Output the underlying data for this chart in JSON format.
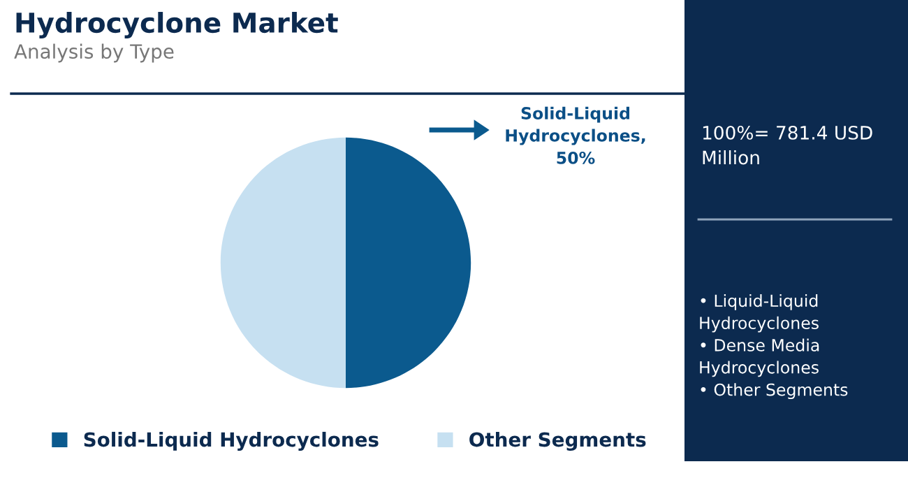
{
  "chart_data": {
    "type": "pie",
    "title": "Hydrocyclone Market",
    "subtitle": "Analysis by Type",
    "categories": [
      "Solid-Liquid Hydrocyclones",
      "Other Segments"
    ],
    "values": [
      50,
      50
    ],
    "colors": [
      "#0b5a8e",
      "#c6e0f1"
    ],
    "annotations": [
      {
        "text": "Solid-Liquid\nHydrocyclones,\n50%"
      },
      "100%= 781.4 USD\nMillion",
      "• Liquid-Liquid\nHydrocyclones\n• Dense Media\nHydrocyclones\n• Other Segments"
    ],
    "legend": "bottom"
  }
}
